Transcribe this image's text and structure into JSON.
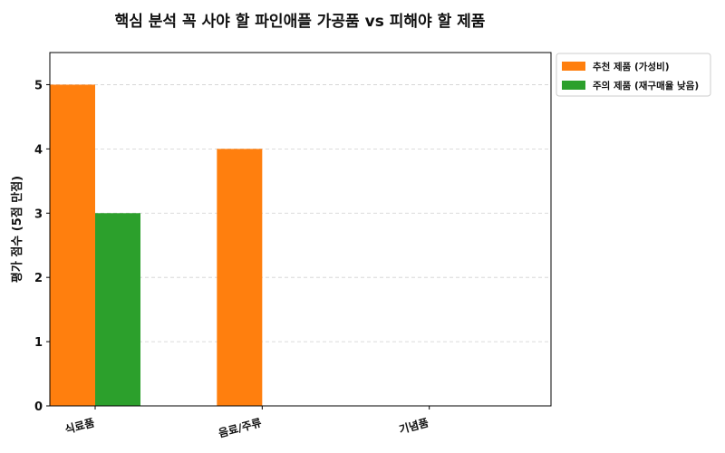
{
  "chart_data": {
    "type": "bar",
    "title": "핵심 분석 꼭 사야 할 파인애플 가공품 vs 피해야 할 제품",
    "xlabel": "",
    "ylabel": "평가 점수 (5점 만점)",
    "categories": [
      "식료품",
      "음료/주류",
      "기념품"
    ],
    "series": [
      {
        "name": "추천 제품 (가성비)",
        "values": [
          5,
          4,
          0
        ],
        "color": "#ff7f0e"
      },
      {
        "name": "주의 제품 (재구매율 낮음)",
        "values": [
          3,
          0,
          0
        ],
        "color": "#2ca02c"
      }
    ],
    "ylim": [
      0,
      5.5
    ],
    "yticks": [
      "0",
      "1",
      "2",
      "3",
      "4",
      "5"
    ],
    "grid": true,
    "legend_position": "outside-upper-right"
  }
}
